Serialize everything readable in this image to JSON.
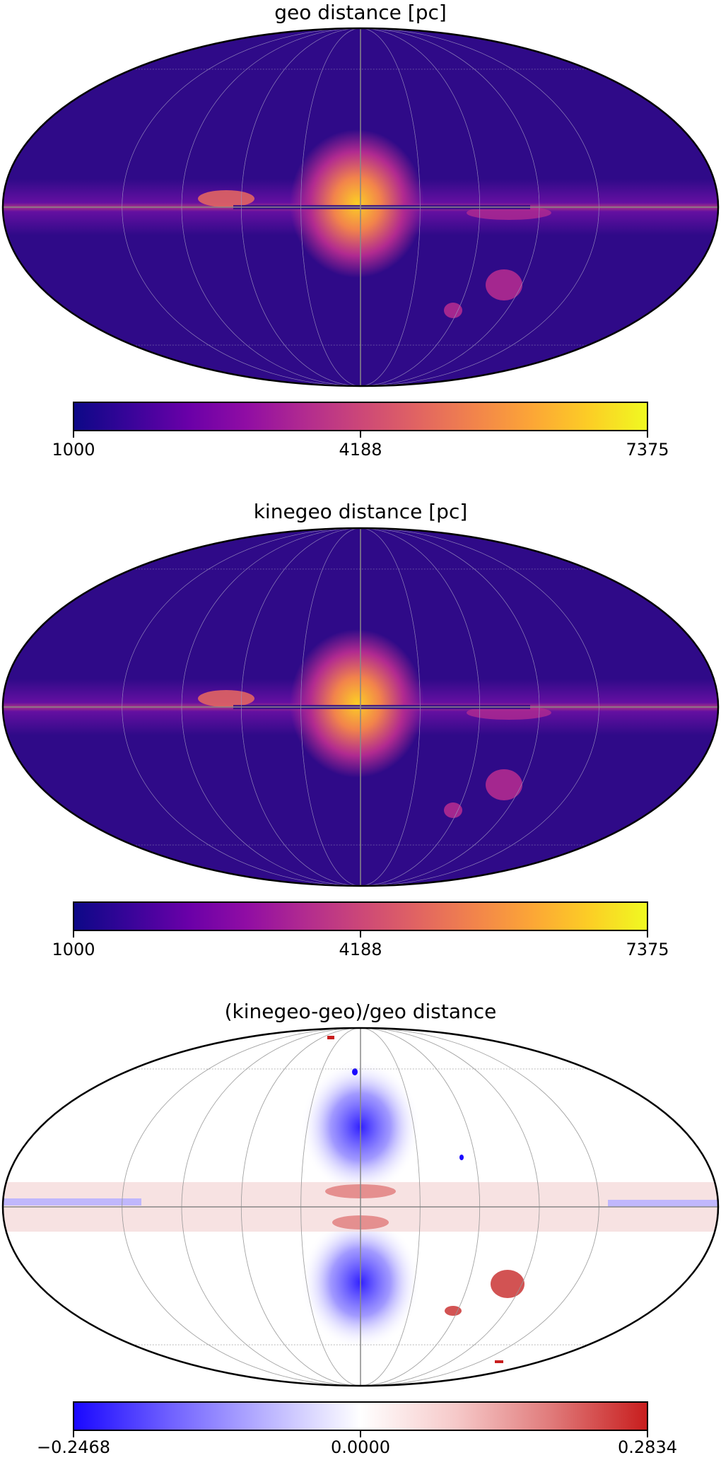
{
  "chart_data": [
    {
      "type": "heatmap",
      "projection": "mollweide",
      "title": "geo distance [pc]",
      "colormap": "plasma",
      "colorbar": {
        "min": 1000,
        "max": 7375,
        "ticks": [
          "1000",
          "4188",
          "7375"
        ]
      },
      "graticule": true,
      "background_color": "#2f0a88",
      "features": [
        "galactic plane band",
        "central bulge",
        "LMC",
        "SMC"
      ]
    },
    {
      "type": "heatmap",
      "projection": "mollweide",
      "title": "kinegeo distance [pc]",
      "colormap": "plasma",
      "colorbar": {
        "min": 1000,
        "max": 7375,
        "ticks": [
          "1000",
          "4188",
          "7375"
        ]
      },
      "graticule": true,
      "background_color": "#2f0a88",
      "features": [
        "galactic plane band",
        "central bulge",
        "LMC",
        "SMC"
      ]
    },
    {
      "type": "heatmap",
      "projection": "mollweide",
      "title": "(kinegeo-geo)/geo distance",
      "colormap": "bwr",
      "colorbar": {
        "min": -0.2468,
        "max": 0.2834,
        "ticks": [
          "−0.2468",
          "0.0000",
          "0.2834"
        ]
      },
      "graticule": true,
      "background_color": "#ffffff",
      "features": [
        "blue lobes above and below bulge",
        "reddish disk band",
        "red LMC",
        "red SMC"
      ]
    }
  ]
}
